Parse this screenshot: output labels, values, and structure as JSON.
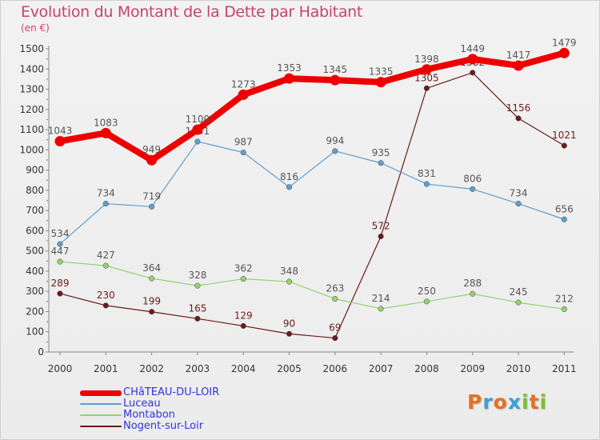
{
  "title": "Evolution du Montant de la Dette par Habitant",
  "unit_label": "(en €)",
  "logo": {
    "letters": [
      "P",
      "r",
      "o",
      "x",
      "i",
      "t",
      "i"
    ],
    "colors": [
      "#e8701e",
      "#3aa0d8",
      "#e8701e",
      "#3aa0d8",
      "#7fbf2a",
      "#e8701e",
      "#7fbf2a"
    ]
  },
  "chart_data": {
    "type": "line",
    "x": [
      "2000",
      "2001",
      "2002",
      "2003",
      "2004",
      "2005",
      "2006",
      "2007",
      "2008",
      "2009",
      "2010",
      "2011"
    ],
    "ylim": [
      0,
      1500
    ],
    "yticks": [
      0,
      100,
      200,
      300,
      400,
      500,
      600,
      700,
      800,
      900,
      1000,
      1100,
      1200,
      1300,
      1400,
      1500
    ],
    "grid": false,
    "legend": "bottom-left",
    "series": [
      {
        "name": "Nogent-sur-Loir",
        "color": "#6b1a1a",
        "label_color": "#6b1a1a",
        "values": [
          289,
          230,
          199,
          165,
          129,
          90,
          69,
          572,
          1305,
          1382,
          1156,
          1021
        ]
      },
      {
        "name": "Montabon",
        "color": "#92d36e",
        "label_color": "#555555",
        "values": [
          447,
          427,
          364,
          328,
          362,
          348,
          263,
          214,
          250,
          288,
          245,
          212
        ]
      },
      {
        "name": "Luceau",
        "color": "#5f9fcf",
        "label_color": "#555555",
        "values": [
          534,
          734,
          719,
          1041,
          987,
          816,
          994,
          935,
          831,
          806,
          734,
          656
        ]
      },
      {
        "name": "CHâTEAU-DU-LOIR",
        "color": "#ee0000",
        "label_color": "#555555",
        "values": [
          1043,
          1083,
          949,
          1100,
          1273,
          1353,
          1345,
          1335,
          1398,
          1449,
          1417,
          1479
        ]
      }
    ],
    "legend_entries": [
      {
        "name": "CHâTEAU-DU-LOIR",
        "color": "#ee0000",
        "text_color": "#3333dd"
      },
      {
        "name": "Luceau",
        "color": "#5f9fcf",
        "text_color": "#3333dd"
      },
      {
        "name": "Montabon",
        "color": "#92d36e",
        "text_color": "#3333dd"
      },
      {
        "name": "Nogent-sur-Loir",
        "color": "#6b1a1a",
        "text_color": "#3333dd"
      }
    ]
  }
}
